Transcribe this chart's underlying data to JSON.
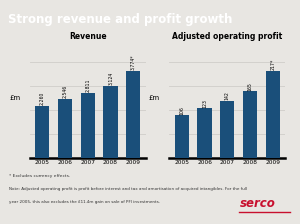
{
  "title": "Strong revenue and profit growth",
  "title_bg": "#c8102e",
  "bg_color": "#e8e6e2",
  "chart_bg": "#e8e6e2",
  "bar_color": "#1a4f7a",
  "years": [
    "2005",
    "2006",
    "2007",
    "2008",
    "2009"
  ],
  "revenue_values": [
    2260,
    2546,
    2811,
    3124,
    3774
  ],
  "revenue_labels": [
    "2,260",
    "2,546",
    "2,811",
    "3,124",
    "3,774*"
  ],
  "revenue_title": "Revenue",
  "revenue_ylabel": "£m",
  "profit_values": [
    106,
    123,
    142,
    165,
    217
  ],
  "profit_labels": [
    "106",
    "123",
    "142",
    "165",
    "217*"
  ],
  "profit_title": "Adjusted operating profit",
  "profit_ylabel": "£m",
  "footnote1": "* Excludes currency effects.",
  "footnote2": "Note: Adjusted operating profit is profit before interest and tax and amortisation of acquired intangibles. For the full",
  "footnote3": "year 2005, this also excludes the £11.4m gain on sale of PFI investments.",
  "serco_color": "#c8102e",
  "grid_color": "#d0cdc9"
}
